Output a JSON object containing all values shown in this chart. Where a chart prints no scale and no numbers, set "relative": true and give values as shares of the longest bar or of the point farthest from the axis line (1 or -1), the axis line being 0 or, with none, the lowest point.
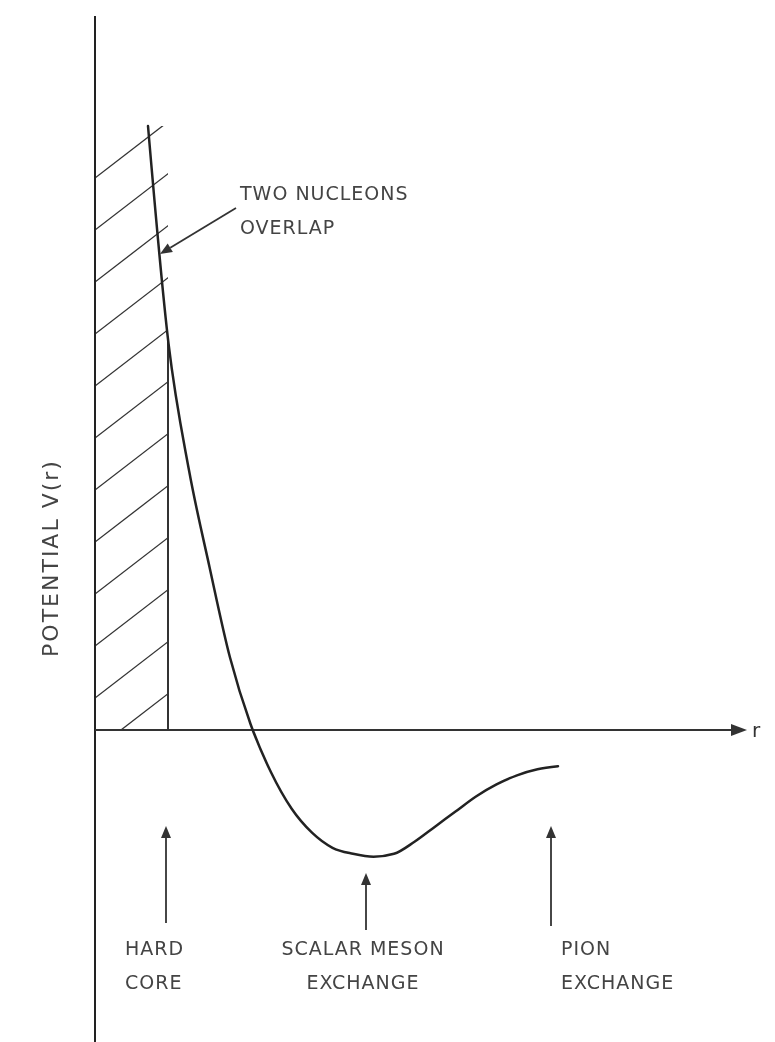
{
  "chart_data": {
    "type": "line",
    "relative": true,
    "ylabel": "POTENTIAL V(r)",
    "categories": [
      null,
      null,
      null,
      null,
      null,
      null,
      null,
      null,
      null,
      null,
      null,
      null,
      null,
      null,
      null,
      null,
      null,
      null,
      null,
      null,
      null
    ],
    "series": [
      {
        "color": "#222222",
        "values": [
          1.0,
          0.64,
          0.43,
          0.27,
          0.12,
          0.01,
          -0.07,
          -0.13,
          -0.17,
          -0.195,
          -0.205,
          -0.21,
          -0.205,
          -0.185,
          -0.16,
          -0.135,
          -0.11,
          -0.09,
          -0.075,
          -0.065,
          -0.06
        ]
      }
    ],
    "annotations": [
      "TWO NUCLEONS\nOVERLAP",
      "HARD\nCORE",
      "SCALAR MESON\nEXCHANGE",
      "PION\nEXCHANGE",
      "r"
    ],
    "marker": "none",
    "line_style": "solid"
  }
}
